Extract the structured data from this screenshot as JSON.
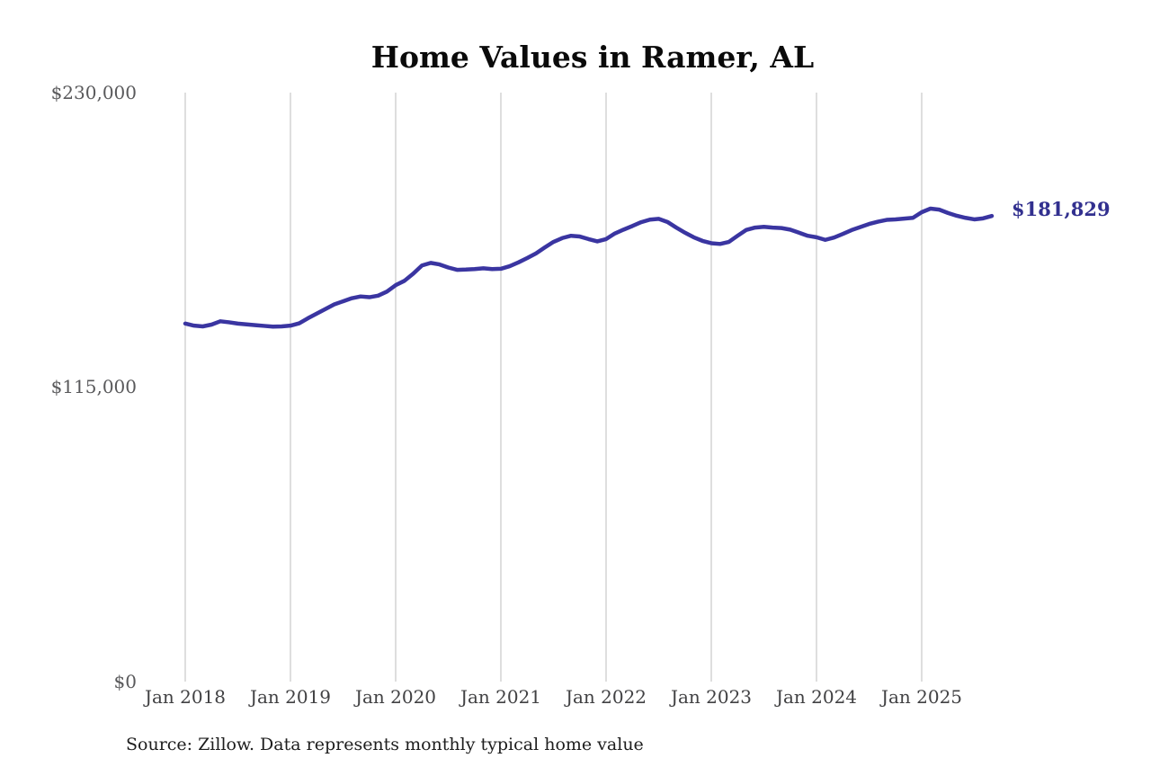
{
  "chart_data": {
    "type": "line",
    "title": "Home Values in Ramer, AL",
    "source": "Source: Zillow. Data represents monthly typical home value",
    "series_name": "Monthly typical home value",
    "end_label": "$181,829",
    "end_value": 181829,
    "ylim": [
      0,
      230000
    ],
    "y_ticks": [
      0,
      115000,
      230000
    ],
    "y_tick_labels": [
      "$0",
      "$115,000",
      "$230,000"
    ],
    "x_tick_labels": [
      "Jan 2018",
      "Jan 2019",
      "Jan 2020",
      "Jan 2021",
      "Jan 2022",
      "Jan 2023",
      "Jan 2024",
      "Jan 2025"
    ],
    "grid": "vertical-only",
    "legend": "none",
    "line_color": "#3a35a1",
    "end_label_color": "#32308f",
    "grid_color": "#c7c7c7",
    "months": [
      "2018-01",
      "2018-02",
      "2018-03",
      "2018-04",
      "2018-05",
      "2018-06",
      "2018-07",
      "2018-08",
      "2018-09",
      "2018-10",
      "2018-11",
      "2018-12",
      "2019-01",
      "2019-02",
      "2019-03",
      "2019-04",
      "2019-05",
      "2019-06",
      "2019-07",
      "2019-08",
      "2019-09",
      "2019-10",
      "2019-11",
      "2019-12",
      "2020-01",
      "2020-02",
      "2020-03",
      "2020-04",
      "2020-05",
      "2020-06",
      "2020-07",
      "2020-08",
      "2020-09",
      "2020-10",
      "2020-11",
      "2020-12",
      "2021-01",
      "2021-02",
      "2021-03",
      "2021-04",
      "2021-05",
      "2021-06",
      "2021-07",
      "2021-08",
      "2021-09",
      "2021-10",
      "2021-11",
      "2021-12",
      "2022-01",
      "2022-02",
      "2022-03",
      "2022-04",
      "2022-05",
      "2022-06",
      "2022-07",
      "2022-08",
      "2022-09",
      "2022-10",
      "2022-11",
      "2022-12",
      "2023-01",
      "2023-02",
      "2023-03",
      "2023-04",
      "2023-05",
      "2023-06",
      "2023-07",
      "2023-08",
      "2023-09",
      "2023-10",
      "2023-11",
      "2023-12",
      "2024-01",
      "2024-02",
      "2024-03",
      "2024-04",
      "2024-05",
      "2024-06",
      "2024-07",
      "2024-08",
      "2024-09",
      "2024-10",
      "2024-11",
      "2024-12",
      "2025-01",
      "2025-02",
      "2025-03",
      "2025-04",
      "2025-05",
      "2025-06",
      "2025-07",
      "2025-08",
      "2025-09"
    ],
    "values": [
      139800,
      139000,
      138700,
      139400,
      140700,
      140300,
      139800,
      139500,
      139200,
      138900,
      138600,
      138700,
      139000,
      139900,
      141900,
      143700,
      145500,
      147300,
      148500,
      149700,
      150400,
      150100,
      150700,
      152300,
      154800,
      156500,
      159300,
      162500,
      163500,
      162900,
      161700,
      160800,
      160900,
      161100,
      161400,
      161100,
      161200,
      162200,
      163700,
      165400,
      167200,
      169500,
      171700,
      173200,
      174100,
      173800,
      172800,
      171900,
      172800,
      175000,
      176500,
      177900,
      179400,
      180400,
      180700,
      179500,
      177300,
      175300,
      173500,
      172100,
      171200,
      170900,
      171700,
      174100,
      176400,
      177300,
      177600,
      177300,
      177100,
      176500,
      175300,
      174100,
      173500,
      172500,
      173400,
      174800,
      176300,
      177500,
      178700,
      179600,
      180300,
      180500,
      180800,
      181100,
      183300,
      184700,
      184300,
      183000,
      181900,
      181100,
      180500,
      180900,
      181829
    ]
  }
}
